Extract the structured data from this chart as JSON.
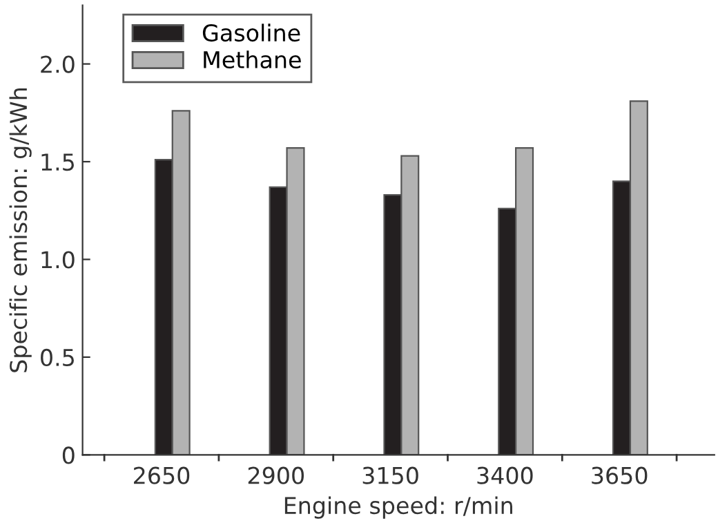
{
  "chart_data": {
    "type": "bar",
    "xlabel": "Engine speed: r/min",
    "ylabel": "Specific emission: g/kWh",
    "categories": [
      "2650",
      "2900",
      "3150",
      "3400",
      "3650"
    ],
    "series": [
      {
        "name": "Gasoline",
        "color": "#231f20",
        "values": [
          1.51,
          1.37,
          1.33,
          1.26,
          1.4
        ]
      },
      {
        "name": "Methane",
        "color": "#b3b3b3",
        "values": [
          1.76,
          1.57,
          1.53,
          1.57,
          1.81
        ]
      }
    ],
    "ylim": [
      0,
      2.3
    ],
    "yticks": [
      {
        "value": 0,
        "label": "0"
      },
      0.5,
      {
        "value": 1,
        "label": "1.0"
      },
      1.5,
      {
        "value": 2,
        "label": "2.0"
      }
    ],
    "grid": false,
    "legend": "top left"
  }
}
